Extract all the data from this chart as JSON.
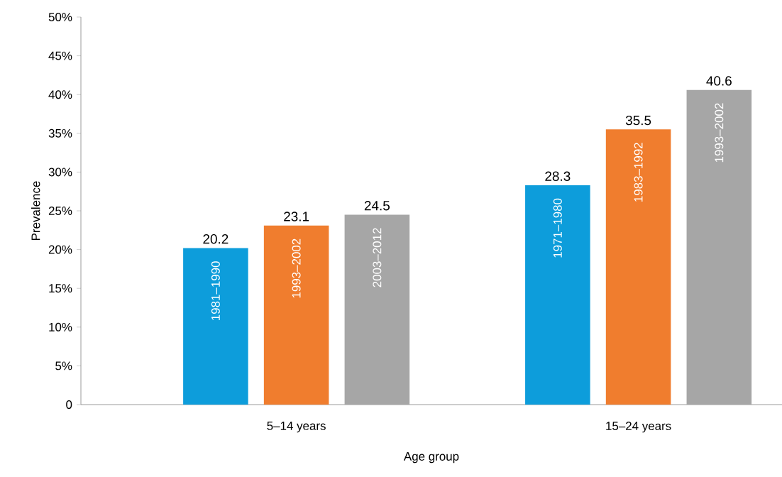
{
  "chart_data": {
    "type": "bar",
    "xlabel": "Age group",
    "ylabel": "Prevalence",
    "categories": [
      "5–14 years",
      "15–24 years"
    ],
    "series": [
      {
        "color": "#0d9ddb",
        "values": [
          20.2,
          28.3
        ]
      },
      {
        "color": "#f07d2e",
        "values": [
          23.1,
          35.5
        ]
      },
      {
        "color": "#a6a6a6",
        "values": [
          24.5,
          40.6
        ]
      }
    ],
    "ylim": [
      0,
      50
    ],
    "yticks": [
      0,
      {
        "value": 5,
        "label": "5%"
      },
      {
        "value": 10,
        "label": "10%"
      },
      {
        "value": 15,
        "label": "15%"
      },
      {
        "value": 20,
        "label": "20%"
      },
      {
        "value": 25,
        "label": "25%"
      },
      {
        "value": 30,
        "label": "30%"
      },
      {
        "value": 35,
        "label": "35%"
      },
      {
        "value": 40,
        "label": "40%"
      },
      {
        "value": 45,
        "label": "45%"
      },
      {
        "value": 50,
        "label": "50%"
      }
    ],
    "data_labels": true,
    "annotations": [
      "1981–1990",
      "1993–2002",
      "2003–2012",
      "1971–1980",
      "1983–1992",
      "1993–2002"
    ]
  }
}
